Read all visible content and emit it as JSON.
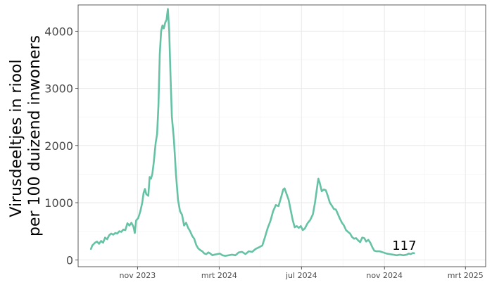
{
  "chart_data": {
    "type": "line",
    "title": "",
    "ylabel_lines": [
      "Virusdeeltjes in riool",
      "per 100 duizend inwoners"
    ],
    "xlabel": "",
    "ylim": [
      -120,
      4460
    ],
    "xlim": [
      "2023-08-05",
      "2025-03-31"
    ],
    "y_ticks": [
      0,
      1000,
      2000,
      3000,
      4000
    ],
    "y_tick_labels": [
      "0",
      "1000",
      "2000",
      "3000",
      "4000"
    ],
    "x_ticks": [
      "2023-11-01",
      "2024-03-01",
      "2024-07-01",
      "2024-11-01",
      "2025-03-01"
    ],
    "x_tick_labels": [
      "nov 2023",
      "mrt 2024",
      "jul 2024",
      "nov 2024",
      "mrt 2025"
    ],
    "grid": true,
    "line_color": "#66c2a5",
    "end_label": "117",
    "series": [
      {
        "points": [
          [
            "2023-08-24",
            190
          ],
          [
            "2023-08-26",
            250
          ],
          [
            "2023-08-30",
            300
          ],
          [
            "2023-09-02",
            320
          ],
          [
            "2023-09-05",
            280
          ],
          [
            "2023-09-08",
            330
          ],
          [
            "2023-09-11",
            300
          ],
          [
            "2023-09-14",
            390
          ],
          [
            "2023-09-17",
            360
          ],
          [
            "2023-09-20",
            430
          ],
          [
            "2023-09-23",
            460
          ],
          [
            "2023-09-26",
            440
          ],
          [
            "2023-09-29",
            470
          ],
          [
            "2023-10-02",
            460
          ],
          [
            "2023-10-05",
            500
          ],
          [
            "2023-10-08",
            490
          ],
          [
            "2023-10-11",
            530
          ],
          [
            "2023-10-14",
            520
          ],
          [
            "2023-10-17",
            640
          ],
          [
            "2023-10-20",
            600
          ],
          [
            "2023-10-23",
            650
          ],
          [
            "2023-10-26",
            580
          ],
          [
            "2023-10-28",
            470
          ],
          [
            "2023-10-30",
            690
          ],
          [
            "2023-11-02",
            730
          ],
          [
            "2023-11-05",
            840
          ],
          [
            "2023-11-08",
            1000
          ],
          [
            "2023-11-10",
            1170
          ],
          [
            "2023-11-12",
            1240
          ],
          [
            "2023-11-14",
            1150
          ],
          [
            "2023-11-17",
            1120
          ],
          [
            "2023-11-19",
            1450
          ],
          [
            "2023-11-21",
            1420
          ],
          [
            "2023-11-23",
            1500
          ],
          [
            "2023-11-25",
            1700
          ],
          [
            "2023-11-28",
            2050
          ],
          [
            "2023-11-30",
            2200
          ],
          [
            "2023-12-02",
            2700
          ],
          [
            "2023-12-04",
            3600
          ],
          [
            "2023-12-06",
            4000
          ],
          [
            "2023-12-08",
            4100
          ],
          [
            "2023-12-10",
            4050
          ],
          [
            "2023-12-12",
            4150
          ],
          [
            "2023-12-14",
            4200
          ],
          [
            "2023-12-16",
            4390
          ],
          [
            "2023-12-18",
            4000
          ],
          [
            "2023-12-20",
            3200
          ],
          [
            "2023-12-22",
            2500
          ],
          [
            "2023-12-25",
            2100
          ],
          [
            "2023-12-28",
            1500
          ],
          [
            "2023-12-31",
            1050
          ],
          [
            "2024-01-03",
            850
          ],
          [
            "2024-01-06",
            790
          ],
          [
            "2024-01-09",
            600
          ],
          [
            "2024-01-12",
            650
          ],
          [
            "2024-01-15",
            560
          ],
          [
            "2024-01-18",
            500
          ],
          [
            "2024-01-21",
            420
          ],
          [
            "2024-01-24",
            370
          ],
          [
            "2024-01-27",
            260
          ],
          [
            "2024-01-30",
            200
          ],
          [
            "2024-02-02",
            170
          ],
          [
            "2024-02-05",
            150
          ],
          [
            "2024-02-08",
            110
          ],
          [
            "2024-02-11",
            100
          ],
          [
            "2024-02-14",
            130
          ],
          [
            "2024-02-17",
            110
          ],
          [
            "2024-02-20",
            80
          ],
          [
            "2024-02-23",
            90
          ],
          [
            "2024-02-27",
            100
          ],
          [
            "2024-03-02",
            110
          ],
          [
            "2024-03-06",
            80
          ],
          [
            "2024-03-10",
            70
          ],
          [
            "2024-03-15",
            80
          ],
          [
            "2024-03-20",
            90
          ],
          [
            "2024-03-25",
            80
          ],
          [
            "2024-03-30",
            130
          ],
          [
            "2024-04-04",
            140
          ],
          [
            "2024-04-09",
            100
          ],
          [
            "2024-04-14",
            150
          ],
          [
            "2024-04-19",
            140
          ],
          [
            "2024-04-24",
            190
          ],
          [
            "2024-04-29",
            220
          ],
          [
            "2024-05-04",
            250
          ],
          [
            "2024-05-08",
            400
          ],
          [
            "2024-05-12",
            560
          ],
          [
            "2024-05-16",
            680
          ],
          [
            "2024-05-20",
            850
          ],
          [
            "2024-05-24",
            960
          ],
          [
            "2024-05-28",
            940
          ],
          [
            "2024-06-01",
            1100
          ],
          [
            "2024-06-04",
            1230
          ],
          [
            "2024-06-06",
            1250
          ],
          [
            "2024-06-09",
            1150
          ],
          [
            "2024-06-12",
            1050
          ],
          [
            "2024-06-15",
            870
          ],
          [
            "2024-06-18",
            700
          ],
          [
            "2024-06-21",
            570
          ],
          [
            "2024-06-24",
            590
          ],
          [
            "2024-06-27",
            560
          ],
          [
            "2024-06-30",
            590
          ],
          [
            "2024-07-03",
            520
          ],
          [
            "2024-07-06",
            550
          ],
          [
            "2024-07-10",
            640
          ],
          [
            "2024-07-14",
            700
          ],
          [
            "2024-07-18",
            800
          ],
          [
            "2024-07-21",
            1000
          ],
          [
            "2024-07-24",
            1250
          ],
          [
            "2024-07-26",
            1420
          ],
          [
            "2024-07-28",
            1350
          ],
          [
            "2024-07-31",
            1200
          ],
          [
            "2024-08-03",
            1230
          ],
          [
            "2024-08-06",
            1220
          ],
          [
            "2024-08-09",
            1120
          ],
          [
            "2024-08-12",
            1000
          ],
          [
            "2024-08-15",
            950
          ],
          [
            "2024-08-18",
            890
          ],
          [
            "2024-08-21",
            880
          ],
          [
            "2024-08-24",
            800
          ],
          [
            "2024-08-27",
            720
          ],
          [
            "2024-08-30",
            650
          ],
          [
            "2024-09-02",
            600
          ],
          [
            "2024-09-05",
            520
          ],
          [
            "2024-09-08",
            490
          ],
          [
            "2024-09-11",
            460
          ],
          [
            "2024-09-14",
            400
          ],
          [
            "2024-09-17",
            370
          ],
          [
            "2024-09-20",
            380
          ],
          [
            "2024-09-23",
            340
          ],
          [
            "2024-09-26",
            310
          ],
          [
            "2024-09-29",
            390
          ],
          [
            "2024-10-02",
            380
          ],
          [
            "2024-10-05",
            320
          ],
          [
            "2024-10-08",
            350
          ],
          [
            "2024-10-11",
            300
          ],
          [
            "2024-10-14",
            220
          ],
          [
            "2024-10-17",
            160
          ],
          [
            "2024-10-20",
            150
          ],
          [
            "2024-10-25",
            150
          ],
          [
            "2024-10-30",
            130
          ],
          [
            "2024-11-04",
            110
          ],
          [
            "2024-11-09",
            100
          ],
          [
            "2024-11-14",
            90
          ],
          [
            "2024-11-19",
            80
          ],
          [
            "2024-11-24",
            90
          ],
          [
            "2024-11-29",
            80
          ],
          [
            "2024-12-04",
            90
          ],
          [
            "2024-12-07",
            110
          ],
          [
            "2024-12-10",
            100
          ],
          [
            "2024-12-13",
            120
          ],
          [
            "2024-12-15",
            117
          ]
        ]
      }
    ]
  }
}
